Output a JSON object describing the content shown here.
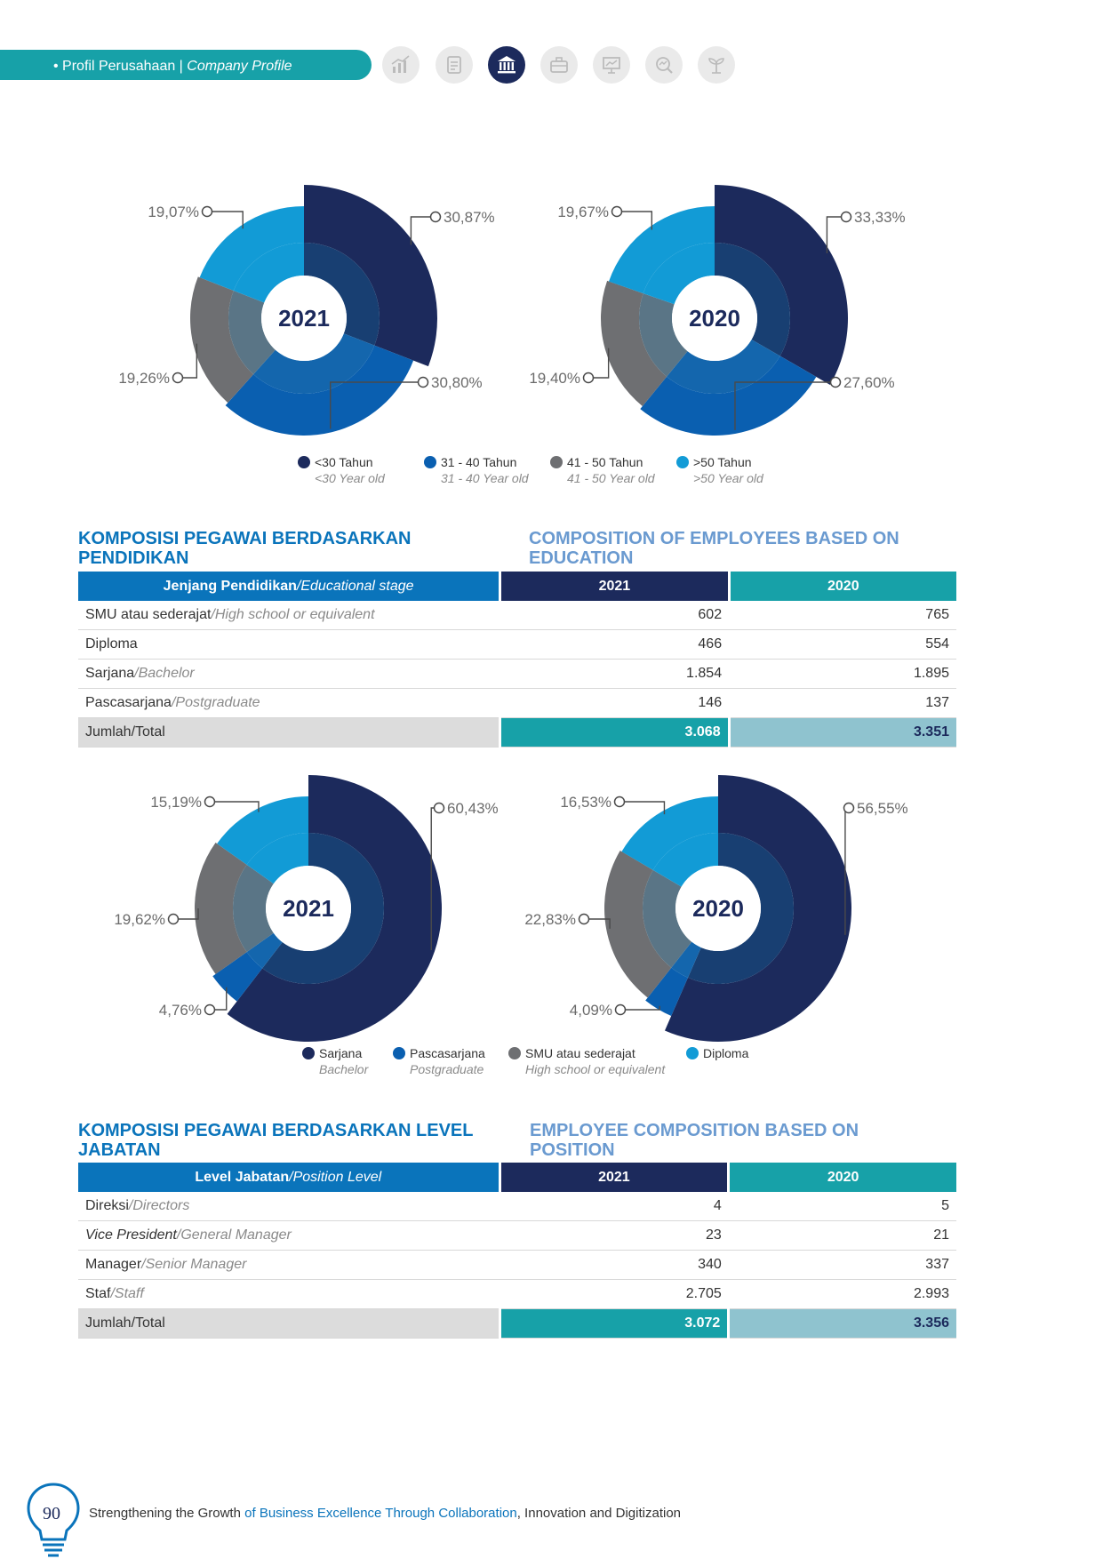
{
  "header": {
    "section_id": "Profil Perusahaan",
    "separator": " | ",
    "section_en": "Company Profile",
    "nav_icons": [
      "chart-icon",
      "document-icon",
      "institution-icon",
      "briefcase-icon",
      "presentation-icon",
      "analytics-icon",
      "sprout-icon"
    ],
    "active_icon": 2
  },
  "colors": {
    "navy": "#1c2a5c",
    "blue": "#0a5fb0",
    "gray": "#6e6f72",
    "light_blue": "#129bd6",
    "teal": "#17a1a8",
    "accent": "#0a74bb"
  },
  "age_legend": [
    {
      "id": "<30 Tahun",
      "en": "<30 Year old",
      "color": "#1c2a5c"
    },
    {
      "id": "31 - 40 Tahun",
      "en": "31 - 40 Year old",
      "color": "#0a5fb0"
    },
    {
      "id": "41 - 50 Tahun",
      "en": "41 - 50 Year old",
      "color": "#6e6f72"
    },
    {
      "id": ">50 Tahun",
      "en": ">50 Year old",
      "color": "#129bd6"
    }
  ],
  "education_legend": [
    {
      "id": "Sarjana",
      "en": "Bachelor",
      "color": "#1c2a5c"
    },
    {
      "id": "Pascasarjana",
      "en": "Postgraduate",
      "color": "#0a5fb0"
    },
    {
      "id": "SMU atau sederajat",
      "en": "High school or equivalent",
      "color": "#6e6f72"
    },
    {
      "id": "Diploma",
      "en": "",
      "color": "#129bd6"
    }
  ],
  "chart_data": [
    {
      "type": "pie",
      "center_label": "2021",
      "labels": [
        "<30 Tahun",
        "31 - 40 Tahun",
        "41 - 50 Tahun",
        ">50 Tahun"
      ],
      "values": [
        30.87,
        30.8,
        19.26,
        19.07
      ],
      "value_labels": [
        "30,87%",
        "30,80%",
        "19,26%",
        "19,07%"
      ]
    },
    {
      "type": "pie",
      "center_label": "2020",
      "labels": [
        "<30 Tahun",
        "31 - 40 Tahun",
        "41 - 50 Tahun",
        ">50 Tahun"
      ],
      "values": [
        33.33,
        27.6,
        19.4,
        19.67
      ],
      "value_labels": [
        "33,33%",
        "27,60%",
        "19,40%",
        "19,67%"
      ]
    },
    {
      "type": "pie",
      "center_label": "2021",
      "labels": [
        "Sarjana",
        "Pascasarjana",
        "SMU atau sederajat",
        "Diploma"
      ],
      "values": [
        60.43,
        4.76,
        19.62,
        15.19
      ],
      "value_labels": [
        "60,43%",
        "4,76%",
        "19,62%",
        "15,19%"
      ]
    },
    {
      "type": "pie",
      "center_label": "2020",
      "labels": [
        "Sarjana",
        "Pascasarjana",
        "SMU atau sederajat",
        "Diploma"
      ],
      "values": [
        56.55,
        4.09,
        22.83,
        16.53
      ],
      "value_labels": [
        "56,55%",
        "4,09%",
        "22,83%",
        "16,53%"
      ]
    }
  ],
  "education_section": {
    "title_id": "KOMPOSISI PEGAWAI BERDASARKAN PENDIDIKAN",
    "title_en": "COMPOSITION OF EMPLOYEES BASED ON EDUCATION",
    "table": {
      "header_id": "Jenjang Pendidikan",
      "header_en": "/Educational stage",
      "col1": "2021",
      "col2": "2020",
      "rows": [
        {
          "id": "SMU atau sederajat",
          "en": "/High school or equivalent",
          "v1": "602",
          "v2": "765"
        },
        {
          "id": "Diploma",
          "en": "",
          "v1": "466",
          "v2": "554"
        },
        {
          "id": "Sarjana",
          "en": "/Bachelor",
          "v1": "1.854",
          "v2": "1.895"
        },
        {
          "id": "Pascasarjana",
          "en": "/Postgraduate",
          "v1": "146",
          "v2": "137"
        }
      ],
      "total_label": "Jumlah/Total",
      "total1": "3.068",
      "total2": "3.351"
    }
  },
  "position_section": {
    "title_id": "KOMPOSISI PEGAWAI BERDASARKAN LEVEL JABATAN",
    "title_en": "EMPLOYEE COMPOSITION BASED ON POSITION",
    "table": {
      "header_id": "Level Jabatan",
      "header_en": "/Position Level",
      "col1": "2021",
      "col2": "2020",
      "rows": [
        {
          "id": "Direksi",
          "en": "/Directors",
          "v1": "4",
          "v2": "5"
        },
        {
          "id": "Vice President",
          "en": "/General Manager",
          "v1": "23",
          "v2": "21"
        },
        {
          "id": "Manager",
          "en": "/Senior Manager",
          "v1": "340",
          "v2": "337"
        },
        {
          "id": "Staf",
          "en": "/Staff",
          "v1": "2.705",
          "v2": "2.993"
        }
      ],
      "total_label": "Jumlah/Total",
      "total1": "3.072",
      "total2": "3.356"
    }
  },
  "footer": {
    "page_number": "90",
    "text_a": "Strengthening the Growth",
    "text_b": " of ",
    "text_c": "Business Excellence Through Collaboration",
    "text_d": ", Innovation and Digitization"
  }
}
